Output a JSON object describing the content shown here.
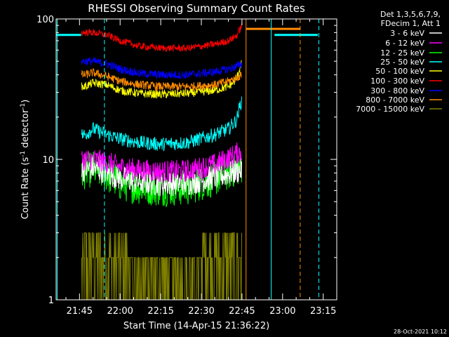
{
  "chart_data": {
    "type": "line",
    "title": "RHESSI Observing Summary Count Rates",
    "xlabel": "Start Time (14-Apr-15 21:36:22)",
    "ylabel_main": "Count Rate (s",
    "ylabel_sup1": "-1",
    "ylabel_mid": " detector",
    "ylabel_sup2": "-1",
    "ylabel_end": ")",
    "yscale": "log",
    "ylim": [
      1,
      100
    ],
    "xlim": [
      "21:36:22",
      "23:20:00"
    ],
    "y_tick_labels": [
      {
        "value": 1,
        "label": "1"
      },
      {
        "value": 10,
        "label": "10"
      },
      {
        "value": 100,
        "label": "100"
      }
    ],
    "x_tick_labels": [
      "21:45",
      "22:00",
      "22:15",
      "22:30",
      "22:45",
      "23:00",
      "23:15"
    ],
    "x_tick_minutes": [
      45,
      60,
      75,
      90,
      105,
      120,
      135
    ],
    "legend_header": [
      "Det 1,3,5,6,7,9,",
      "FDecim 1, Att 1"
    ],
    "legend_position": "right",
    "series": [
      {
        "name": "3 - 6 keV",
        "color": "#ffffff",
        "anchors": [
          [
            45.8,
            8.5
          ],
          [
            47,
            8.5
          ],
          [
            50,
            8.7
          ],
          [
            55,
            8.1
          ],
          [
            60,
            7.3
          ],
          [
            67,
            6.9
          ],
          [
            75,
            6.7
          ],
          [
            85,
            6.8
          ],
          [
            95,
            7.4
          ],
          [
            100,
            7.9
          ],
          [
            103,
            8.2
          ],
          [
            105,
            8.5
          ]
        ],
        "noise": 0.09
      },
      {
        "name": "6 - 12 keV",
        "color": "#ff00ff",
        "anchors": [
          [
            45.8,
            10
          ],
          [
            47,
            10
          ],
          [
            50,
            10
          ],
          [
            55,
            9.6
          ],
          [
            60,
            8.8
          ],
          [
            67,
            8.4
          ],
          [
            75,
            8.2
          ],
          [
            85,
            8.3
          ],
          [
            95,
            9.2
          ],
          [
            100,
            10.2
          ],
          [
            103,
            11
          ],
          [
            105,
            11.5
          ]
        ],
        "noise": 0.08
      },
      {
        "name": "12 - 25 keV",
        "color": "#00ff00",
        "anchors": [
          [
            45.8,
            8.2
          ],
          [
            47,
            8.2
          ],
          [
            50,
            8.6
          ],
          [
            55,
            7.8
          ],
          [
            60,
            6.8
          ],
          [
            67,
            6.4
          ],
          [
            75,
            6.2
          ],
          [
            85,
            6.3
          ],
          [
            95,
            7.3
          ],
          [
            100,
            8.1
          ],
          [
            103,
            8.6
          ],
          [
            105,
            9
          ]
        ],
        "noise": 0.13
      },
      {
        "name": "25 - 50 keV",
        "color": "#00ffff",
        "anchors": [
          [
            45.8,
            15
          ],
          [
            47,
            15
          ],
          [
            50,
            16.5
          ],
          [
            55,
            15
          ],
          [
            60,
            14
          ],
          [
            67,
            13.2
          ],
          [
            75,
            12.8
          ],
          [
            85,
            13.2
          ],
          [
            95,
            15
          ],
          [
            100,
            16.5
          ],
          [
            103,
            19
          ],
          [
            105,
            27
          ]
        ],
        "noise": 0.05
      },
      {
        "name": "50 - 100 keV",
        "color": "#ffff00",
        "anchors": [
          [
            45.8,
            33
          ],
          [
            47,
            33
          ],
          [
            50,
            35
          ],
          [
            55,
            34
          ],
          [
            60,
            31
          ],
          [
            67,
            29.5
          ],
          [
            75,
            29
          ],
          [
            85,
            29.5
          ],
          [
            95,
            31
          ],
          [
            100,
            33
          ],
          [
            103,
            37
          ],
          [
            105,
            50
          ]
        ],
        "noise": 0.03
      },
      {
        "name": "100 - 300 keV",
        "color": "#ff0000",
        "anchors": [
          [
            45.8,
            80
          ],
          [
            47,
            80
          ],
          [
            50,
            80
          ],
          [
            55,
            77
          ],
          [
            60,
            70
          ],
          [
            67,
            64
          ],
          [
            75,
            62
          ],
          [
            85,
            62
          ],
          [
            95,
            66
          ],
          [
            100,
            70
          ],
          [
            103,
            76
          ],
          [
            105,
            90
          ]
        ],
        "noise": 0.025
      },
      {
        "name": "300 - 800 keV",
        "color": "#0000ff",
        "anchors": [
          [
            45.8,
            50
          ],
          [
            47,
            50
          ],
          [
            50,
            50
          ],
          [
            55,
            48
          ],
          [
            60,
            44
          ],
          [
            67,
            41
          ],
          [
            75,
            40
          ],
          [
            85,
            40
          ],
          [
            95,
            42
          ],
          [
            100,
            44
          ],
          [
            103,
            46
          ],
          [
            105,
            48
          ]
        ],
        "noise": 0.03
      },
      {
        "name": "800 - 7000 keV",
        "color": "#ff8c00",
        "anchors": [
          [
            45.8,
            40
          ],
          [
            47,
            40
          ],
          [
            50,
            41.5
          ],
          [
            55,
            39
          ],
          [
            60,
            36
          ],
          [
            67,
            34
          ],
          [
            75,
            33
          ],
          [
            85,
            33
          ],
          [
            95,
            34
          ],
          [
            100,
            36
          ],
          [
            103,
            38
          ],
          [
            105,
            40
          ]
        ],
        "noise": 0.03
      },
      {
        "name": "7000 - 15000 keV",
        "color": "#808000",
        "anchors": [
          [
            45.8,
            2.5
          ],
          [
            47,
            2.5
          ],
          [
            60,
            2.3
          ],
          [
            65,
            1.6
          ],
          [
            75,
            1.45
          ],
          [
            85,
            1.5
          ],
          [
            90,
            2
          ],
          [
            95,
            2.4
          ],
          [
            105,
            2.6
          ]
        ],
        "noise": 0.2
      }
    ],
    "overlays": {
      "cyan_segments": [
        {
          "from_min": 36.4,
          "to_min": 45.6,
          "value": 77
        },
        {
          "from_min": 117,
          "to_min": 133,
          "value": 77
        }
      ],
      "orange_segments": [
        {
          "from_min": 106.5,
          "to_min": 126.5,
          "value": 85
        }
      ],
      "cyan_solid_lines_min": [
        36.8,
        115.8
      ],
      "cyan_dashed_lines_min": [
        54.2,
        133.4
      ],
      "orange_solid_lines_min": [
        106.5
      ],
      "orange_dashed_lines_min": [
        126.5
      ]
    },
    "footer_stamp": "28-Oct-2021 10:12"
  }
}
